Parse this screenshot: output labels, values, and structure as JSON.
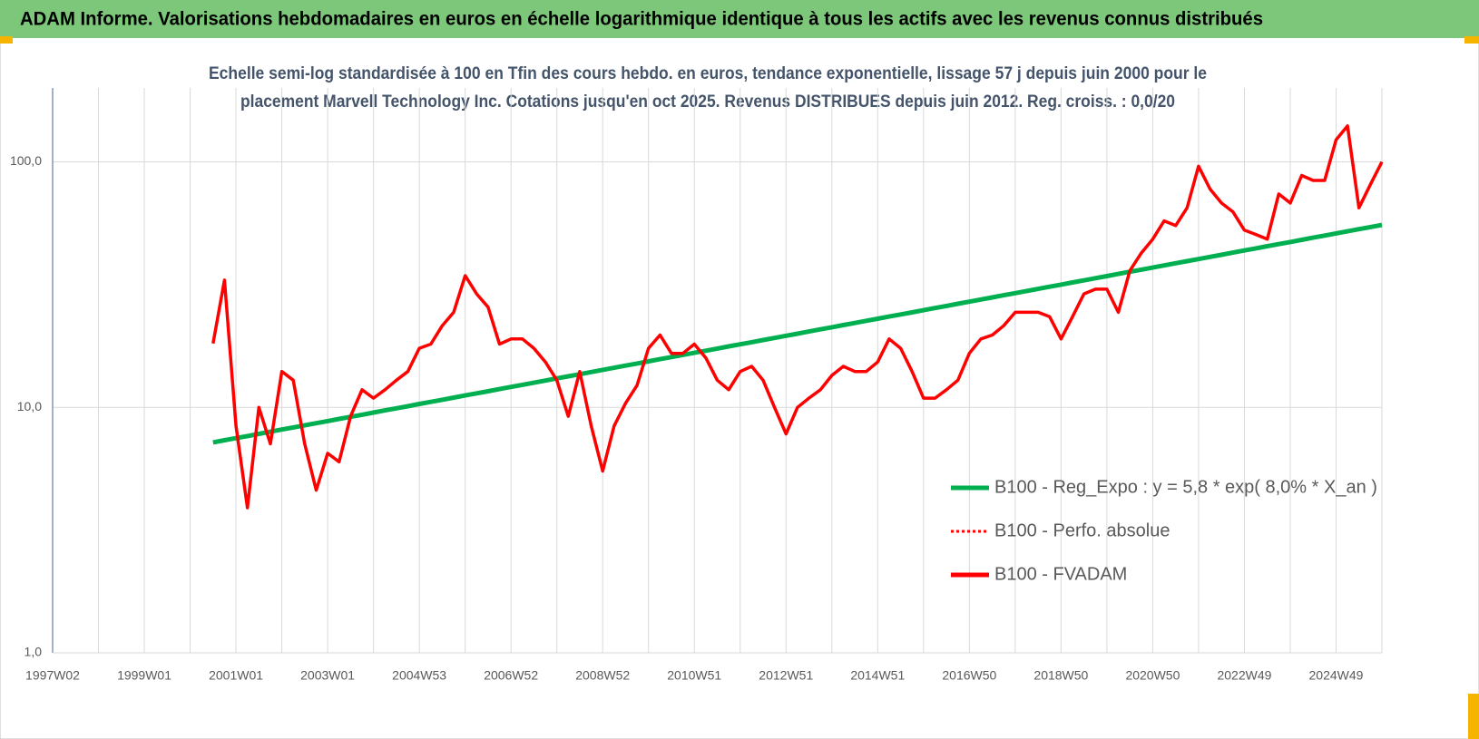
{
  "header": {
    "title": "ADAM Informe. Valorisations hebdomadaires en euros en échelle logarithmique identique à tous les actifs avec les revenus connus distribués"
  },
  "chart_data": {
    "type": "line",
    "title": [
      "Echelle semi-log standardisée à 100 en Tfin des cours hebdo. en euros, tendance exponentielle, lissage 57 j depuis juin 2000 pour le",
      "placement Marvell Technology Inc. Cotations jusqu'en oct 2025.  Revenus DISTRIBUES depuis juin 2012. Reg. croiss. : 0,0/20"
    ],
    "yscale": "log",
    "ylim": [
      1,
      200
    ],
    "yticks": [
      {
        "value": 1,
        "label": "1,0"
      },
      {
        "value": 10,
        "label": "10,0"
      },
      {
        "value": 100,
        "label": "100,0"
      }
    ],
    "grid": true,
    "legend": "lower right",
    "categories": [
      "1997W02",
      null,
      null,
      null,
      null,
      null,
      null,
      null,
      "1999W01",
      null,
      null,
      null,
      null,
      null,
      null,
      null,
      "2001W01",
      null,
      null,
      null,
      null,
      null,
      null,
      null,
      "2003W01",
      null,
      null,
      null,
      null,
      null,
      null,
      null,
      "2004W53",
      null,
      null,
      null,
      null,
      null,
      null,
      null,
      "2006W52",
      null,
      null,
      null,
      null,
      null,
      null,
      null,
      "2008W52",
      null,
      null,
      null,
      null,
      null,
      null,
      null,
      "2010W51",
      null,
      null,
      null,
      null,
      null,
      null,
      null,
      "2012W51",
      null,
      null,
      null,
      null,
      null,
      null,
      null,
      "2014W51",
      null,
      null,
      null,
      null,
      null,
      null,
      null,
      "2016W50",
      null,
      null,
      null,
      null,
      null,
      null,
      null,
      "2018W50",
      null,
      null,
      null,
      null,
      null,
      null,
      null,
      "2020W50",
      null,
      null,
      null,
      null,
      null,
      null,
      null,
      "2022W49",
      null,
      null,
      null,
      null,
      null,
      null,
      null,
      "2024W49",
      null,
      null,
      null,
      null
    ],
    "series": [
      {
        "name": "B100 - Reg_Expo : y = 5,8 * exp( 8,0% *  X_an )",
        "color": "#00b050",
        "dash": "solid",
        "values": [
          null,
          null,
          null,
          null,
          null,
          null,
          null,
          null,
          null,
          null,
          null,
          null,
          null,
          null,
          7.2,
          7.35,
          7.49,
          7.64,
          7.8,
          7.96,
          8.12,
          8.28,
          8.45,
          8.62,
          8.79,
          8.97,
          9.15,
          9.33,
          9.52,
          9.72,
          9.91,
          10.11,
          10.32,
          10.53,
          10.74,
          10.96,
          11.18,
          11.4,
          11.63,
          11.87,
          12.11,
          12.35,
          12.6,
          12.86,
          13.12,
          13.38,
          13.65,
          13.93,
          14.21,
          14.5,
          14.79,
          15.09,
          15.4,
          15.71,
          16.02,
          16.35,
          16.68,
          17.01,
          17.36,
          17.71,
          18.07,
          18.43,
          18.8,
          19.18,
          19.57,
          19.96,
          20.37,
          20.78,
          21.2,
          21.63,
          22.06,
          22.51,
          22.96,
          23.43,
          23.9,
          24.38,
          24.88,
          25.38,
          25.89,
          26.42,
          26.95,
          27.49,
          28.05,
          28.62,
          29.2,
          29.79,
          30.39,
          31.0,
          31.63,
          32.27,
          32.92,
          33.58,
          34.26,
          34.95,
          35.66,
          36.38,
          37.11,
          37.86,
          38.63,
          39.41,
          40.2,
          41.01,
          41.84,
          42.69,
          43.55,
          44.43,
          45.33,
          46.24,
          47.17,
          48.13,
          49.1,
          50.09,
          51.1,
          52.13,
          53.19,
          54.26,
          55.34
        ]
      },
      {
        "name": "B100 - Perfo. absolue",
        "color": "#ff0000",
        "dash": "dotted",
        "values": [
          null,
          null,
          null,
          null,
          null,
          null,
          null,
          null,
          null,
          null,
          null,
          null,
          null,
          null,
          null,
          null,
          null,
          null,
          null,
          null,
          null,
          null,
          null,
          null,
          null,
          null,
          null,
          null,
          null,
          null,
          null,
          null,
          null,
          null,
          null,
          null,
          null,
          null,
          null,
          null,
          null,
          null,
          null,
          null,
          null,
          null,
          null,
          null,
          null,
          null,
          null,
          null,
          null,
          null,
          null,
          null,
          null,
          null,
          null,
          null,
          null,
          null,
          null,
          null,
          null,
          null,
          null,
          null,
          null,
          null,
          null,
          null,
          null,
          null,
          null,
          null,
          null,
          null,
          null,
          null,
          null,
          null,
          null,
          null,
          null,
          null,
          null,
          null,
          null,
          null,
          null,
          null,
          null,
          null,
          null,
          null,
          null,
          null,
          null,
          null,
          null,
          null,
          null,
          null,
          null,
          null,
          null,
          null,
          null,
          null,
          null,
          null,
          null,
          null,
          null,
          null,
          null
        ]
      },
      {
        "name": "B100 - FVADAM",
        "color": "#ff0000",
        "dash": "solid",
        "values": [
          null,
          null,
          null,
          null,
          null,
          null,
          null,
          null,
          null,
          null,
          null,
          null,
          null,
          null,
          18.2,
          33,
          8.4,
          3.9,
          10,
          7.1,
          14,
          12.9,
          7.1,
          4.6,
          6.5,
          6.0,
          9.2,
          11.8,
          10.9,
          11.8,
          12.9,
          14,
          17.4,
          18.1,
          21.5,
          24.4,
          34.4,
          29,
          25.6,
          18.1,
          19,
          19,
          17.4,
          15.3,
          12.9,
          9.2,
          14,
          8.4,
          5.5,
          8.4,
          10.4,
          12.3,
          17.4,
          19.7,
          16.6,
          16.6,
          18.1,
          15.9,
          12.9,
          11.8,
          14,
          14.7,
          12.9,
          10,
          7.8,
          10,
          10.9,
          11.8,
          13.5,
          14.7,
          14,
          14,
          15.3,
          19,
          17.4,
          14,
          10.9,
          10.9,
          11.8,
          12.9,
          16.6,
          19,
          19.7,
          21.5,
          24.4,
          24.4,
          24.4,
          23.4,
          19,
          23.4,
          29,
          30.3,
          30.3,
          24.4,
          36,
          42.5,
          48.4,
          57.5,
          55,
          65,
          96,
          77.5,
          68,
          62.6,
          52.7,
          50.6,
          48.4,
          74,
          68,
          88,
          84,
          84,
          123,
          140,
          65,
          81,
          100
        ]
      }
    ]
  }
}
